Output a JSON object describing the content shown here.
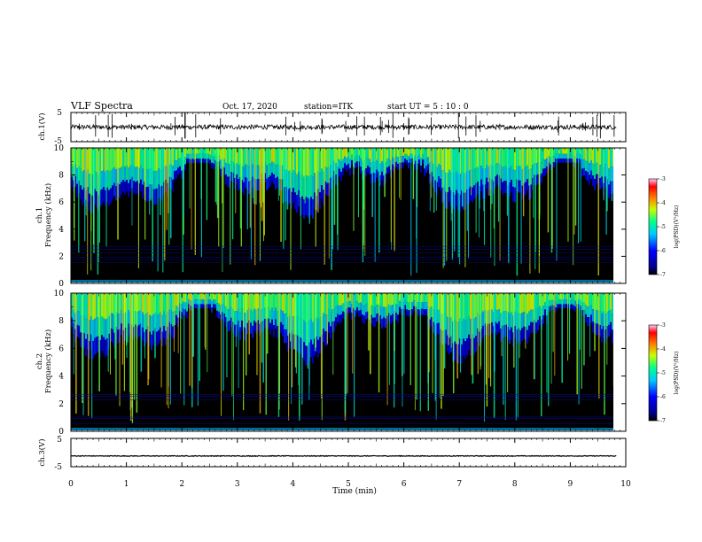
{
  "header": {
    "title": "VLF Spectra",
    "date": "Oct. 17, 2020",
    "station": "station=ITK",
    "start": "start UT =  5 : 10 : 0"
  },
  "chart_data": [
    {
      "type": "line",
      "name": "ch1-waveform",
      "ylabel": "ch.1(V)",
      "ylim": [
        -5,
        5
      ],
      "yticks": [
        "5",
        "-5"
      ],
      "baseline": 0,
      "xlim": [
        0,
        10
      ]
    },
    {
      "type": "heatmap",
      "name": "ch1-spectrogram",
      "ylabel_lines": [
        "ch.1",
        "Frequency (kHz)"
      ],
      "ylim": [
        0,
        10
      ],
      "yticks": [
        "0",
        "2",
        "4",
        "6",
        "8",
        "10"
      ],
      "xlim": [
        0,
        10
      ],
      "data_end_min": 9.83,
      "colorbar": {
        "label": "log(PSD)(V²/Hz)",
        "range": [
          -7,
          -3
        ],
        "ticks": [
          "-3",
          "-4",
          "-5",
          "-6",
          "-7"
        ]
      }
    },
    {
      "type": "heatmap",
      "name": "ch2-spectrogram",
      "ylabel_lines": [
        "ch.2",
        "Frequency (kHz)"
      ],
      "ylim": [
        0,
        10
      ],
      "yticks": [
        "0",
        "2",
        "4",
        "6",
        "8",
        "10"
      ],
      "xlim": [
        0,
        10
      ],
      "data_end_min": 9.83,
      "colorbar": {
        "label": "log(PSD)(V²/Hz)",
        "range": [
          -7,
          -3
        ],
        "ticks": [
          "-3",
          "-4",
          "-5",
          "-6",
          "-7"
        ]
      }
    },
    {
      "type": "line",
      "name": "ch3-waveform",
      "ylabel": "ch.3(V)",
      "ylim": [
        -5,
        5
      ],
      "yticks": [
        "5",
        "-5"
      ],
      "baseline": -1.2,
      "xlim": [
        0,
        10
      ]
    }
  ],
  "xaxis": {
    "label": "Time (min)",
    "ticks": [
      "0",
      "1",
      "2",
      "3",
      "4",
      "5",
      "6",
      "7",
      "8",
      "9",
      "10"
    ]
  },
  "colors": {
    "background": "#000000",
    "colormap": [
      "#000080",
      "#0000ff",
      "#00c8ff",
      "#00ff80",
      "#ffff00",
      "#ff0000",
      "#ff64ff"
    ]
  }
}
